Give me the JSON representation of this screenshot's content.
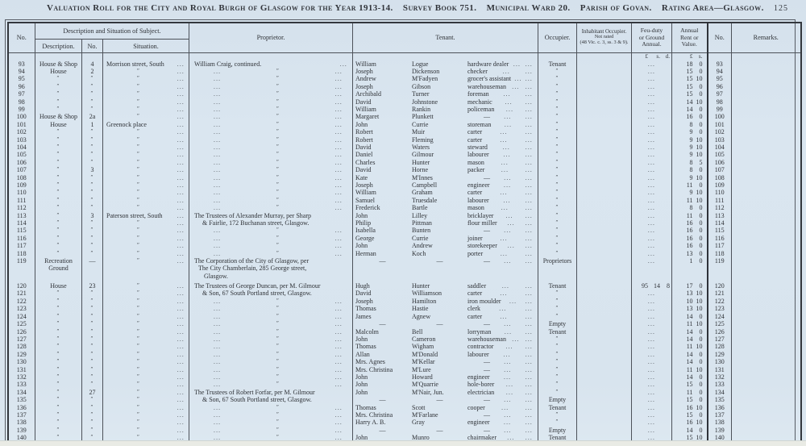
{
  "page": {
    "title": "Valuation Roll for the City and Royal Burgh of Glasgow for the Year 1913-14.",
    "survey_book": "Survey Book 751.",
    "municipal_ward": "Municipal Ward 20.",
    "parish": "Parish of Govan.",
    "rating_area": "Rating Area—Glasgow.",
    "page_number": "125"
  },
  "table": {
    "columns": {
      "no": "No.",
      "group_desc": "Description and Situation of Subject.",
      "description": "Description.",
      "street_no": "No.",
      "situation": "Situation.",
      "proprietor": "Proprietor.",
      "tenant": "Tenant.",
      "occupier": "Occupier.",
      "inhabitant": [
        "Inhabitant Occupier.",
        "Not rated",
        "(48 Vic. c. 3, ss. 3 & 9)."
      ],
      "feu": [
        "Feu-duty",
        "or Ground",
        "Annual."
      ],
      "rent": [
        "Annual",
        "Rent or",
        "Value."
      ],
      "no_right": "No.",
      "remarks": "Remarks."
    },
    "units": {
      "feu": [
        "£",
        "s.",
        "d."
      ],
      "rent": [
        "£",
        "s."
      ]
    },
    "marks": {
      "dots": "...",
      "ditto": "″",
      "dash": "—"
    },
    "rows": [
      {
        "n": "93",
        "d": "House & Shop",
        "sn": "4",
        "sit": "Morrison street, South",
        "p": {
          "t": "x",
          "l": "William Craig, continued.",
          "trail": true
        },
        "tf": "William",
        "tl": "Logue",
        "to": "hardware dealer",
        "oc": "Tenant",
        "feu": null,
        "rent": [
          "18",
          "0"
        ]
      },
      {
        "n": "94",
        "d": "House",
        "sn": "2",
        "sit": "″",
        "p": {
          "t": "d"
        },
        "tf": "Joseph",
        "tl": "Dickenson",
        "to": "checker",
        "oc": "″",
        "feu": null,
        "rent": [
          "15",
          "0"
        ]
      },
      {
        "n": "95",
        "d": "″",
        "sn": "″",
        "sit": "″",
        "p": {
          "t": "d"
        },
        "tf": "Andrew",
        "tl": "M'Fadyen",
        "to": "grocer's assistant",
        "oc": "″",
        "feu": null,
        "rent": [
          "15",
          "10"
        ]
      },
      {
        "n": "96",
        "d": "″",
        "sn": "″",
        "sit": "″",
        "p": {
          "t": "d"
        },
        "tf": "Joseph",
        "tl": "Gibson",
        "to": "warehouseman",
        "oc": "″",
        "feu": null,
        "rent": [
          "15",
          "0"
        ]
      },
      {
        "n": "97",
        "d": "″",
        "sn": "″",
        "sit": "″",
        "p": {
          "t": "d"
        },
        "tf": "Archibald",
        "tl": "Turner",
        "to": "foreman",
        "oc": "″",
        "feu": null,
        "rent": [
          "15",
          "0"
        ]
      },
      {
        "n": "98",
        "d": "″",
        "sn": "″",
        "sit": "″",
        "p": {
          "t": "d"
        },
        "tf": "David",
        "tl": "Johnstone",
        "to": "mechanic",
        "oc": "″",
        "feu": null,
        "rent": [
          "14",
          "10"
        ]
      },
      {
        "n": "99",
        "d": "″",
        "sn": "″",
        "sit": "″",
        "p": {
          "t": "d"
        },
        "tf": "William",
        "tl": "Rankin",
        "to": "policeman",
        "oc": "″",
        "feu": null,
        "rent": [
          "14",
          "0"
        ]
      },
      {
        "n": "100",
        "d": "House & Shop",
        "sn": "2a",
        "sit": "″",
        "p": {
          "t": "d"
        },
        "tf": "Margaret",
        "tl": "Plunkett",
        "to": "—",
        "oc": "″",
        "feu": null,
        "rent": [
          "16",
          "0"
        ]
      },
      {
        "n": "101",
        "d": "House",
        "sn": "1",
        "sit": "Greenock place",
        "p": {
          "t": "d"
        },
        "tf": "John",
        "tl": "Currie",
        "to": "storeman",
        "oc": "″",
        "feu": null,
        "rent": [
          "8",
          "0"
        ]
      },
      {
        "n": "102",
        "d": "″",
        "sn": "″",
        "sit": "″",
        "p": {
          "t": "d"
        },
        "tf": "Robert",
        "tl": "Muir",
        "to": "carter",
        "oc": "″",
        "feu": null,
        "rent": [
          "9",
          "0"
        ]
      },
      {
        "n": "103",
        "d": "″",
        "sn": "″",
        "sit": "″",
        "p": {
          "t": "d"
        },
        "tf": "Robert",
        "tl": "Fleming",
        "to": "carter",
        "oc": "″",
        "feu": null,
        "rent": [
          "9",
          "10"
        ]
      },
      {
        "n": "104",
        "d": "″",
        "sn": "″",
        "sit": "″",
        "p": {
          "t": "d"
        },
        "tf": "David",
        "tl": "Waters",
        "to": "steward",
        "oc": "″",
        "feu": null,
        "rent": [
          "9",
          "10"
        ]
      },
      {
        "n": "105",
        "d": "″",
        "sn": "″",
        "sit": "″",
        "p": {
          "t": "d"
        },
        "tf": "Daniel",
        "tl": "Gilmour",
        "to": "labourer",
        "oc": "″",
        "feu": null,
        "rent": [
          "9",
          "10"
        ]
      },
      {
        "n": "106",
        "d": "″",
        "sn": "″",
        "sit": "″",
        "p": {
          "t": "d"
        },
        "tf": "Charles",
        "tl": "Hunter",
        "to": "mason",
        "oc": "″",
        "feu": null,
        "rent": [
          "8",
          "5"
        ]
      },
      {
        "n": "107",
        "d": "″",
        "sn": "3",
        "sit": "″",
        "p": {
          "t": "d"
        },
        "tf": "David",
        "tl": "Horne",
        "to": "packer",
        "oc": "″",
        "feu": null,
        "rent": [
          "8",
          "0"
        ]
      },
      {
        "n": "108",
        "d": "″",
        "sn": "″",
        "sit": "″",
        "p": {
          "t": "d"
        },
        "tf": "Kate",
        "tl": "M'Innes",
        "to": "—",
        "oc": "″",
        "feu": null,
        "rent": [
          "9",
          "10"
        ]
      },
      {
        "n": "109",
        "d": "″",
        "sn": "″",
        "sit": "″",
        "p": {
          "t": "d"
        },
        "tf": "Joseph",
        "tl": "Campbell",
        "to": "engineer",
        "oc": "″",
        "feu": null,
        "rent": [
          "11",
          "0"
        ]
      },
      {
        "n": "110",
        "d": "″",
        "sn": "″",
        "sit": "″",
        "p": {
          "t": "d"
        },
        "tf": "William",
        "tl": "Graham",
        "to": "carter",
        "oc": "″",
        "feu": null,
        "rent": [
          "9",
          "10"
        ]
      },
      {
        "n": "111",
        "d": "″",
        "sn": "″",
        "sit": "″",
        "p": {
          "t": "d"
        },
        "tf": "Samuel",
        "tl": "Truesdale",
        "to": "labourer",
        "oc": "″",
        "feu": null,
        "rent": [
          "11",
          "10"
        ]
      },
      {
        "n": "112",
        "d": "″",
        "sn": "″",
        "sit": "″",
        "p": {
          "t": "d"
        },
        "tf": "Frederick",
        "tl": "Bartle",
        "to": "mason",
        "oc": "″",
        "feu": null,
        "rent": [
          "8",
          "0"
        ]
      },
      {
        "n": "113",
        "d": "″",
        "sn": "3",
        "sit": "Paterson street, South",
        "p": {
          "t": "x",
          "l": "The Trustees of Alexander Murray, per Sharp"
        },
        "tf": "John",
        "tl": "Lilley",
        "to": "bricklayer",
        "oc": "″",
        "feu": null,
        "rent": [
          "11",
          "0"
        ]
      },
      {
        "n": "114",
        "d": "″",
        "sn": "″",
        "sit": "″",
        "p": {
          "t": "c",
          "l": "& Fairlie, 172 Buchanan street, Glasgow."
        },
        "tf": "Philip",
        "tl": "Pittman",
        "to": "flour miller",
        "oc": "″",
        "feu": null,
        "rent": [
          "16",
          "0"
        ]
      },
      {
        "n": "115",
        "d": "″",
        "sn": "″",
        "sit": "″",
        "p": {
          "t": "d"
        },
        "tf": "Isabella",
        "tl": "Bunten",
        "to": "—",
        "oc": "″",
        "feu": null,
        "rent": [
          "16",
          "0"
        ]
      },
      {
        "n": "116",
        "d": "″",
        "sn": "″",
        "sit": "″",
        "p": {
          "t": "d"
        },
        "tf": "George",
        "tl": "Currie",
        "to": "joiner",
        "oc": "″",
        "feu": null,
        "rent": [
          "16",
          "0"
        ]
      },
      {
        "n": "117",
        "d": "″",
        "sn": "″",
        "sit": "″",
        "p": {
          "t": "d"
        },
        "tf": "John",
        "tl": "Andrew",
        "to": "storekeeper",
        "oc": "″",
        "feu": null,
        "rent": [
          "16",
          "0"
        ]
      },
      {
        "n": "118",
        "d": "″",
        "sn": "″",
        "sit": "″",
        "p": {
          "t": "d"
        },
        "tf": "Herman",
        "tl": "Koch",
        "to": "porter",
        "oc": "″",
        "feu": null,
        "rent": [
          "13",
          "0"
        ]
      },
      {
        "n": "119",
        "d": "Recreation Ground",
        "sn": "—",
        "sit": "″",
        "p": {
          "t": "x3",
          "lines": [
            "The Corporation of the City of Glasgow, per",
            "The City Chamberlain, 285 George street,",
            "Glasgow."
          ]
        },
        "tf": "—",
        "tl": "—",
        "to": "—",
        "oc": "Proprietors",
        "feu": null,
        "rent": [
          "1",
          "0"
        ]
      },
      {
        "n": "120",
        "d": "House",
        "sn": "23",
        "sit": "″",
        "p": {
          "t": "x",
          "l": "The Trustees of George Duncan, per M. Gilmour"
        },
        "tf": "Hugh",
        "tl": "Hunter",
        "to": "saddler",
        "oc": "Tenant",
        "feu": [
          "95",
          "14",
          "8"
        ],
        "rent": [
          "17",
          "0"
        ]
      },
      {
        "n": "121",
        "d": "″",
        "sn": "″",
        "sit": "″",
        "p": {
          "t": "c",
          "l": "& Son, 67 South Portland street, Glasgow."
        },
        "tf": "David",
        "tl": "Williamson",
        "to": "carter",
        "oc": "″",
        "feu": null,
        "rent": [
          "13",
          "10"
        ]
      },
      {
        "n": "122",
        "d": "″",
        "sn": "″",
        "sit": "″",
        "p": {
          "t": "d"
        },
        "tf": "Joseph",
        "tl": "Hamilton",
        "to": "iron moulder",
        "oc": "″",
        "feu": null,
        "rent": [
          "10",
          "10"
        ]
      },
      {
        "n": "123",
        "d": "″",
        "sn": "″",
        "sit": "″",
        "p": {
          "t": "d"
        },
        "tf": "Thomas",
        "tl": "Hastie",
        "to": "clerk",
        "oc": "″",
        "feu": null,
        "rent": [
          "13",
          "10"
        ]
      },
      {
        "n": "124",
        "d": "″",
        "sn": "″",
        "sit": "″",
        "p": {
          "t": "d"
        },
        "tf": "James",
        "tl": "Agnew",
        "to": "carter",
        "oc": "″",
        "feu": null,
        "rent": [
          "14",
          "0"
        ]
      },
      {
        "n": "125",
        "d": "″",
        "sn": "″",
        "sit": "″",
        "p": {
          "t": "d"
        },
        "tf": "—",
        "tl": "—",
        "to": "—",
        "oc": "Empty",
        "feu": null,
        "rent": [
          "11",
          "10"
        ]
      },
      {
        "n": "126",
        "d": "″",
        "sn": "″",
        "sit": "″",
        "p": {
          "t": "d"
        },
        "tf": "Malcolm",
        "tl": "Bell",
        "to": "lorryman",
        "oc": "Tenant",
        "feu": null,
        "rent": [
          "14",
          "0"
        ]
      },
      {
        "n": "127",
        "d": "″",
        "sn": "″",
        "sit": "″",
        "p": {
          "t": "d"
        },
        "tf": "John",
        "tl": "Cameron",
        "to": "warehouseman",
        "oc": "″",
        "feu": null,
        "rent": [
          "14",
          "0"
        ]
      },
      {
        "n": "128",
        "d": "″",
        "sn": "″",
        "sit": "″",
        "p": {
          "t": "d"
        },
        "tf": "Thomas",
        "tl": "Wigham",
        "to": "contractor",
        "oc": "″",
        "feu": null,
        "rent": [
          "11",
          "10"
        ]
      },
      {
        "n": "129",
        "d": "″",
        "sn": "″",
        "sit": "″",
        "p": {
          "t": "d"
        },
        "tf": "Allan",
        "tl": "M'Donald",
        "to": "labourer",
        "oc": "″",
        "feu": null,
        "rent": [
          "14",
          "0"
        ]
      },
      {
        "n": "130",
        "d": "″",
        "sn": "″",
        "sit": "″",
        "p": {
          "t": "d"
        },
        "tf": "Mrs. Agnes",
        "tl": "M'Kellar",
        "to": "—",
        "oc": "″",
        "feu": null,
        "rent": [
          "14",
          "0"
        ]
      },
      {
        "n": "131",
        "d": "″",
        "sn": "″",
        "sit": "″",
        "p": {
          "t": "d"
        },
        "tf": "Mrs. Christina",
        "tl": "M'Lure",
        "to": "—",
        "oc": "″",
        "feu": null,
        "rent": [
          "11",
          "10"
        ]
      },
      {
        "n": "132",
        "d": "″",
        "sn": "″",
        "sit": "″",
        "p": {
          "t": "d"
        },
        "tf": "John",
        "tl": "Howard",
        "to": "engineer",
        "oc": "″",
        "feu": null,
        "rent": [
          "14",
          "0"
        ]
      },
      {
        "n": "133",
        "d": "″",
        "sn": "″",
        "sit": "″",
        "p": {
          "t": "d"
        },
        "tf": "John",
        "tl": "M'Quarrie",
        "to": "hole-borer",
        "oc": "″",
        "feu": null,
        "rent": [
          "15",
          "0"
        ]
      },
      {
        "n": "134",
        "d": "″",
        "sn": "27",
        "sit": "″",
        "p": {
          "t": "x",
          "l": "The Trustees of Robert Forfar, per M. Gilmour"
        },
        "tf": "John",
        "tl": "M'Nair, Jun.",
        "to": "electrician",
        "oc": "″",
        "feu": null,
        "rent": [
          "11",
          "0"
        ]
      },
      {
        "n": "135",
        "d": "″",
        "sn": "″",
        "sit": "″",
        "p": {
          "t": "c",
          "l": "& Son, 67 South Portland street, Glasgow."
        },
        "tf": "—",
        "tl": "—",
        "to": "—",
        "oc": "Empty",
        "feu": null,
        "rent": [
          "15",
          "0"
        ]
      },
      {
        "n": "136",
        "d": "″",
        "sn": "″",
        "sit": "″",
        "p": {
          "t": "d"
        },
        "tf": "Thomas",
        "tl": "Scott",
        "to": "cooper",
        "oc": "Tenant",
        "feu": null,
        "rent": [
          "16",
          "10"
        ]
      },
      {
        "n": "137",
        "d": "″",
        "sn": "″",
        "sit": "″",
        "p": {
          "t": "d"
        },
        "tf": "Mrs. Christina",
        "tl": "M'Farlane",
        "to": "—",
        "oc": "″",
        "feu": null,
        "rent": [
          "15",
          "0"
        ]
      },
      {
        "n": "138",
        "d": "″",
        "sn": "″",
        "sit": "″",
        "p": {
          "t": "d"
        },
        "tf": "Harry A. B.",
        "tl": "Gray",
        "to": "engineer",
        "oc": "″",
        "feu": null,
        "rent": [
          "16",
          "10"
        ]
      },
      {
        "n": "139",
        "d": "″",
        "sn": "″",
        "sit": "″",
        "p": {
          "t": "d"
        },
        "tf": "—",
        "tl": "—",
        "to": "—",
        "oc": "Empty",
        "feu": null,
        "rent": [
          "14",
          "0"
        ]
      },
      {
        "n": "140",
        "d": "″",
        "sn": "″",
        "sit": "″",
        "p": {
          "t": "d"
        },
        "tf": "John",
        "tl": "Munro",
        "to": "chairmaker",
        "oc": "Tenant",
        "feu": null,
        "rent": [
          "15",
          "10"
        ]
      }
    ]
  }
}
